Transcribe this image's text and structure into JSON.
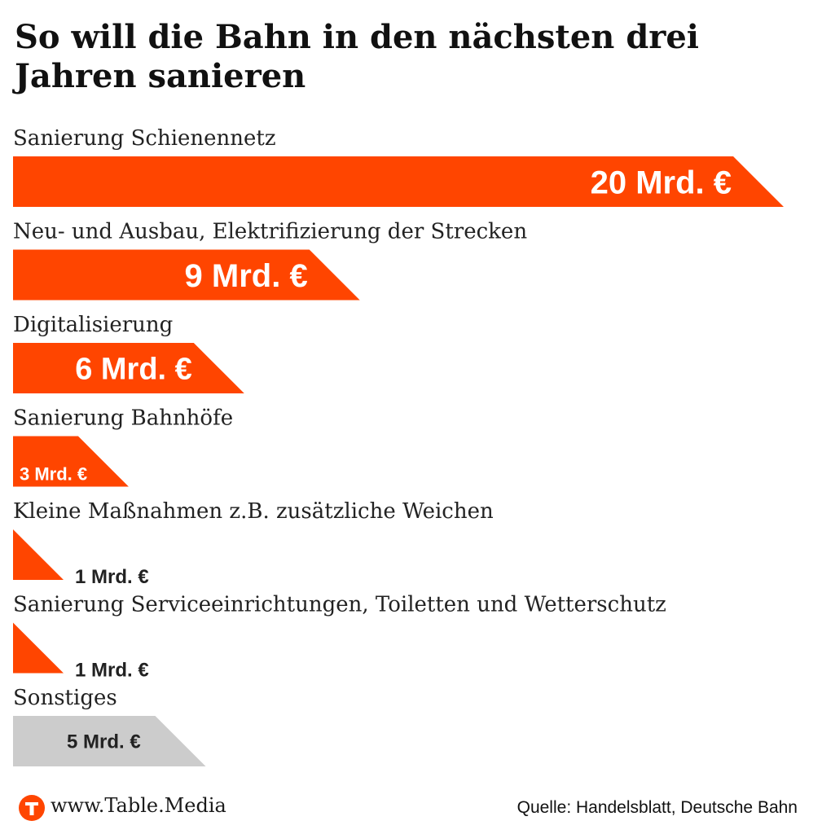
{
  "header": {
    "title": "So will die Bahn in den nächsten drei Jahren sanieren"
  },
  "footer": {
    "brand": "www.Table.Media",
    "source": "Quelle: Handelsblatt, Deutsche Bahn"
  },
  "colors": {
    "accent": "#ff4500",
    "other": "#cccccc",
    "text": "#222222"
  },
  "icons": {
    "logo": "table-media-logo-icon"
  },
  "chart_data": {
    "type": "bar",
    "orientation": "horizontal",
    "title": "So will die Bahn in den nächsten drei Jahren sanieren",
    "categories": [
      "Sanierung Schienennetz",
      "Neu- und Ausbau, Elektrifizierung der Strecken",
      "Digitalisierung",
      "Sanierung Bahnhöfe",
      "Kleine Maßnahmen z.B. zusätzliche Weichen",
      "Sanierung Serviceeinrichtungen, Toiletten und Wetterschutz",
      "Sonstiges"
    ],
    "values": [
      20,
      9,
      6,
      3,
      1,
      1,
      5
    ],
    "value_labels": [
      "20 Mrd. €",
      "9 Mrd. €",
      "6 Mrd. €",
      "3 Mrd. €",
      "1 Mrd. €",
      "1 Mrd. €",
      "5 Mrd. €"
    ],
    "unit": "Mrd. €",
    "bar_colors": [
      "#ff4500",
      "#ff4500",
      "#ff4500",
      "#ff4500",
      "#ff4500",
      "#ff4500",
      "#cccccc"
    ],
    "xlim": [
      0,
      20
    ],
    "grid": false,
    "legend": "none"
  }
}
